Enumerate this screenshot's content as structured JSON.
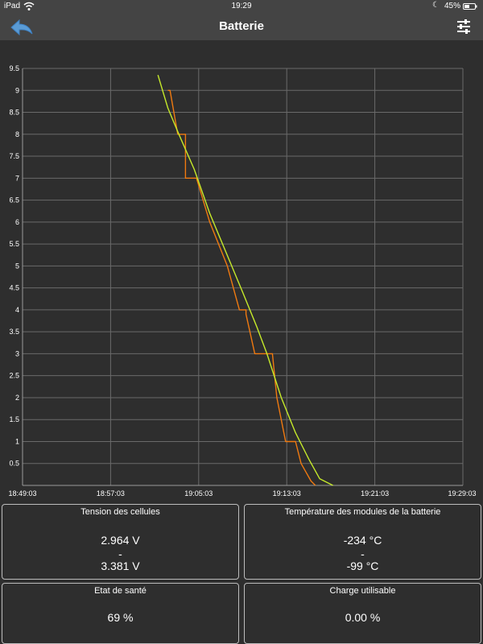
{
  "status_bar": {
    "device": "iPad",
    "time": "19:29",
    "battery": "45%"
  },
  "nav": {
    "title": "Batterie",
    "back_icon": "back-arrow-icon",
    "settings_icon": "sliders-icon"
  },
  "chart_data": {
    "type": "line",
    "x_tick_labels": [
      "18:49:03",
      "18:57:03",
      "19:05:03",
      "19:13:03",
      "19:21:03",
      "19:29:03"
    ],
    "y_tick_labels": [
      "0.5",
      "1",
      "1.5",
      "2",
      "2.5",
      "3",
      "3.5",
      "4",
      "4.5",
      "5",
      "5.5",
      "6",
      "6.5",
      "7",
      "7.5",
      "8",
      "8.5",
      "9",
      "9.5"
    ],
    "xlim_minutes": [
      0,
      40
    ],
    "ylim": [
      0,
      9.5
    ],
    "grid": true,
    "series": [
      {
        "color": "#f07a10",
        "x_minutes": [
          13.2,
          13.4,
          14.1,
          14.8,
          14.8,
          15.8,
          17,
          18.6,
          19.7,
          20.3,
          20.3,
          21.1,
          21.1,
          22.7,
          23.1,
          23.9,
          24.3,
          24.8,
          25.3,
          26.2,
          26.6
        ],
        "y": [
          9.0,
          9.0,
          8.0,
          8.0,
          7.0,
          7.0,
          6.0,
          5.0,
          4.0,
          4.0,
          3.9,
          3.0,
          3.0,
          3.0,
          2.0,
          1.0,
          1.0,
          1.0,
          0.5,
          0.1,
          0.0
        ]
      },
      {
        "color": "#c6ea2a",
        "x_minutes": [
          12.3,
          13.2,
          14.2,
          15.6,
          17,
          18.5,
          20,
          21.3,
          22.2,
          23.5,
          24.8,
          26,
          27,
          28.2
        ],
        "y": [
          9.35,
          8.6,
          8.0,
          7.2,
          6.2,
          5.3,
          4.4,
          3.6,
          3.0,
          2.0,
          1.2,
          0.6,
          0.15,
          0.0
        ]
      }
    ]
  },
  "panels": {
    "cell_voltage": {
      "title": "Tension des cellules",
      "value_min": "2.964 V",
      "separator": "-",
      "value_max": "3.381 V"
    },
    "module_temperature": {
      "title": "Température des modules de la batterie",
      "value_min": "-234 °C",
      "separator": "-",
      "value_max": "-99 °C"
    },
    "state_of_health": {
      "title": "Etat de santé",
      "value": "69 %"
    },
    "usable_charge": {
      "title": "Charge utilisable",
      "value": "0.00 %"
    }
  }
}
